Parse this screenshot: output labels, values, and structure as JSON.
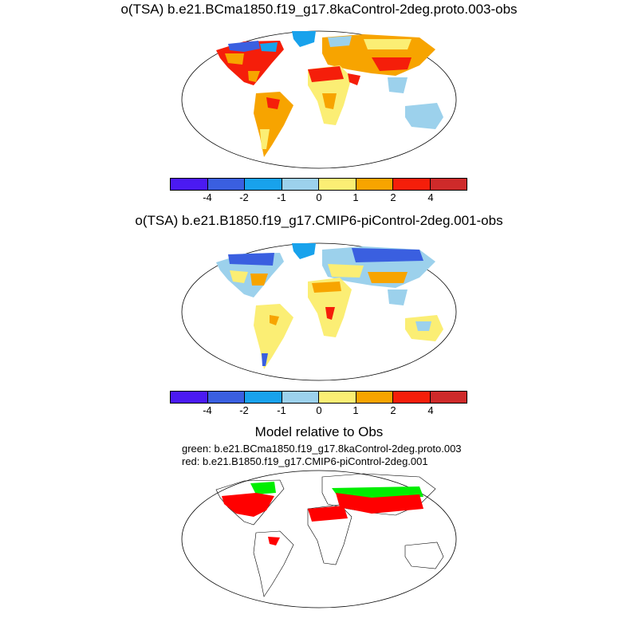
{
  "panels": [
    {
      "title": "o(TSA) b.e21.BCma1850.f19_g17.8kaControl-2deg.proto.003-obs"
    },
    {
      "title": "o(TSA) b.e21.B1850.f19_g17.CMIP6-piControl-2deg.001-obs"
    }
  ],
  "colorbar": {
    "colors": [
      "#4b1af2",
      "#3a5fe0",
      "#18a2ec",
      "#9cd1ec",
      "#fbee74",
      "#f7a400",
      "#f51e0a",
      "#ce2a2a"
    ],
    "tick_labels": [
      "-4",
      "-2",
      "-1",
      "0",
      "1",
      "2",
      "4"
    ]
  },
  "comparison": {
    "title": "Model relative to Obs",
    "green_label": "green: b.e21.BCma1850.f19_g17.8kaControl-2deg.proto.003",
    "red_label": "red: b.e21.B1850.f19_g17.CMIP6-piControl-2deg.001",
    "green_color": "#00ee00",
    "red_color": "#ff0000"
  }
}
